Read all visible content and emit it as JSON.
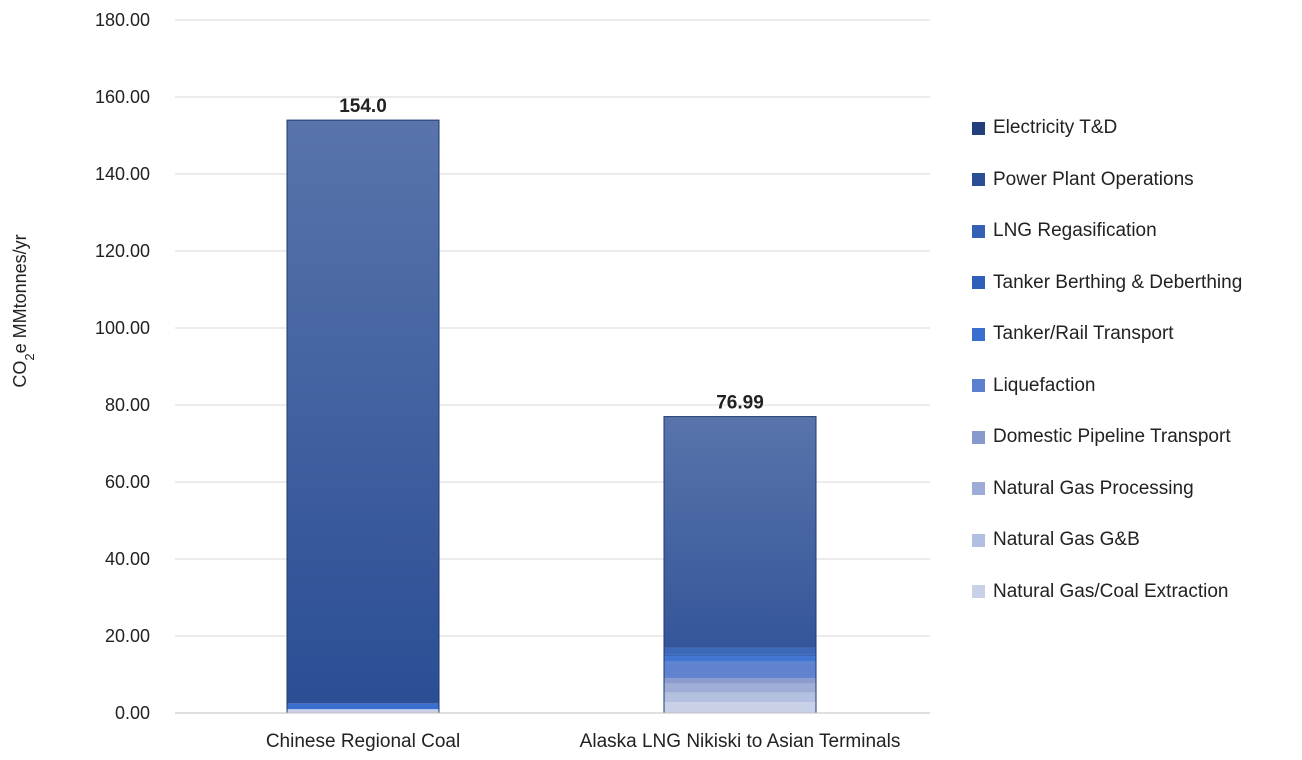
{
  "chart_data": {
    "type": "bar",
    "stacked": true,
    "categories": [
      "Chinese Regional Coal",
      "Alaska LNG Nikiski to Asian Terminals"
    ],
    "totals_labels": [
      "154.0",
      "76.99"
    ],
    "ylabel_prefix": "CO",
    "ylabel_sub": "2",
    "ylabel_suffix": "e MMtonnes/yr",
    "ylim": [
      0,
      180
    ],
    "yticks": [
      "0.00",
      "20.00",
      "40.00",
      "60.00",
      "80.00",
      "100.00",
      "120.00",
      "140.00",
      "160.00",
      "180.00"
    ],
    "grid": true,
    "legend_position": "right",
    "series": [
      {
        "name": "Natural Gas/Coal Extraction",
        "color": "#c9d1e8",
        "values": [
          1.0,
          2.8
        ]
      },
      {
        "name": "Natural Gas G&B",
        "color": "#b3bfe0",
        "values": [
          0.0,
          2.5
        ]
      },
      {
        "name": "Natural Gas Processing",
        "color": "#9dacd6",
        "values": [
          0.0,
          2.3
        ]
      },
      {
        "name": "Domestic Pipeline Transport",
        "color": "#8899cd",
        "values": [
          0.0,
          1.5
        ]
      },
      {
        "name": "Liquefaction",
        "color": "#5b7fcf",
        "values": [
          0.0,
          4.2
        ]
      },
      {
        "name": "Tanker/Rail Transport",
        "color": "#3a6fd0",
        "values": [
          1.5,
          1.5
        ]
      },
      {
        "name": "Tanker Berthing & Deberthing",
        "color": "#2f5fb8",
        "values": [
          0.0,
          0.5
        ]
      },
      {
        "name": "LNG Regasification",
        "color": "#3461b5",
        "values": [
          0.0,
          1.7
        ]
      },
      {
        "name": "Power Plant Operations",
        "color": "#2a4d94",
        "values": [
          151.5,
          59.99
        ]
      },
      {
        "name": "Electricity T&D",
        "color": "#223f7c",
        "values": [
          0.0,
          0.0
        ]
      }
    ]
  }
}
